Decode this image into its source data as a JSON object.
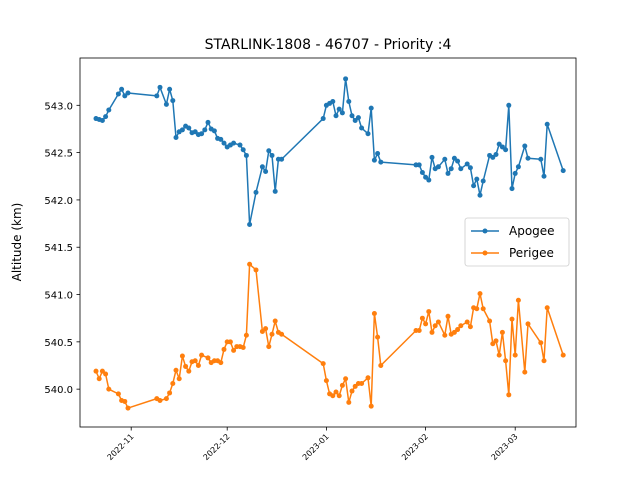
{
  "chart_data": {
    "type": "line",
    "title": "STARLINK-1808 - 46707 - Priority :4",
    "xlabel": "",
    "ylabel": "Altitude (km)",
    "xlim": [
      "2022-10-16",
      "2023-03-20"
    ],
    "ylim": [
      539.6,
      543.5
    ],
    "yticks": [
      540.0,
      540.5,
      541.0,
      541.5,
      542.0,
      542.5,
      543.0
    ],
    "yticklabels": [
      "540.0",
      "540.5",
      "541.0",
      "541.5",
      "542.0",
      "542.5",
      "543.0"
    ],
    "xticks": [
      "2022-11-01",
      "2022-12-01",
      "2023-01-01",
      "2023-02-01",
      "2023-03-01"
    ],
    "xticklabels": [
      "2022-11",
      "2022-12",
      "2023-01",
      "2023-02",
      "2023-03"
    ],
    "legend_position": "center-right",
    "grid": false,
    "series": [
      {
        "name": "Apogee",
        "color": "#1f77b4",
        "points": [
          [
            "2022-10-21",
            542.86
          ],
          [
            "2022-10-22",
            542.85
          ],
          [
            "2022-10-23",
            542.84
          ],
          [
            "2022-10-24",
            542.88
          ],
          [
            "2022-10-25",
            542.95
          ],
          [
            "2022-10-28",
            543.12
          ],
          [
            "2022-10-29",
            543.17
          ],
          [
            "2022-10-30",
            543.1
          ],
          [
            "2022-10-31",
            543.13
          ],
          [
            "2022-11-09",
            543.1
          ],
          [
            "2022-11-10",
            543.19
          ],
          [
            "2022-11-12",
            543.01
          ],
          [
            "2022-11-13",
            543.17
          ],
          [
            "2022-11-14",
            543.05
          ],
          [
            "2022-11-15",
            542.66
          ],
          [
            "2022-11-16",
            542.72
          ],
          [
            "2022-11-17",
            542.74
          ],
          [
            "2022-11-18",
            542.78
          ],
          [
            "2022-11-19",
            542.76
          ],
          [
            "2022-11-20",
            542.71
          ],
          [
            "2022-11-21",
            542.72
          ],
          [
            "2022-11-22",
            542.69
          ],
          [
            "2022-11-23",
            542.7
          ],
          [
            "2022-11-24",
            542.74
          ],
          [
            "2022-11-25",
            542.82
          ],
          [
            "2022-11-26",
            542.75
          ],
          [
            "2022-11-27",
            542.73
          ],
          [
            "2022-11-28",
            542.65
          ],
          [
            "2022-11-29",
            542.64
          ],
          [
            "2022-11-30",
            542.6
          ],
          [
            "2022-12-01",
            542.56
          ],
          [
            "2022-12-02",
            542.58
          ],
          [
            "2022-12-03",
            542.6
          ],
          [
            "2022-12-05",
            542.58
          ],
          [
            "2022-12-06",
            542.53
          ],
          [
            "2022-12-07",
            542.47
          ],
          [
            "2022-12-08",
            541.74
          ],
          [
            "2022-12-10",
            542.08
          ],
          [
            "2022-12-12",
            542.35
          ],
          [
            "2022-12-13",
            542.3
          ],
          [
            "2022-12-14",
            542.52
          ],
          [
            "2022-12-15",
            542.47
          ],
          [
            "2022-12-16",
            542.09
          ],
          [
            "2022-12-17",
            542.43
          ],
          [
            "2022-12-18",
            542.43
          ],
          [
            "2022-12-31",
            542.86
          ],
          [
            "2023-01-01",
            543.0
          ],
          [
            "2023-01-02",
            543.02
          ],
          [
            "2023-01-03",
            543.04
          ],
          [
            "2023-01-04",
            542.89
          ],
          [
            "2023-01-05",
            542.96
          ],
          [
            "2023-01-06",
            542.92
          ],
          [
            "2023-01-07",
            543.28
          ],
          [
            "2023-01-08",
            543.04
          ],
          [
            "2023-01-09",
            542.89
          ],
          [
            "2023-01-10",
            542.84
          ],
          [
            "2023-01-11",
            542.87
          ],
          [
            "2023-01-12",
            542.76
          ],
          [
            "2023-01-14",
            542.7
          ],
          [
            "2023-01-15",
            542.97
          ],
          [
            "2023-01-16",
            542.42
          ],
          [
            "2023-01-17",
            542.49
          ],
          [
            "2023-01-18",
            542.4
          ],
          [
            "2023-01-29",
            542.37
          ],
          [
            "2023-01-30",
            542.37
          ],
          [
            "2023-01-31",
            542.29
          ],
          [
            "2023-02-01",
            542.24
          ],
          [
            "2023-02-02",
            542.21
          ],
          [
            "2023-02-03",
            542.45
          ],
          [
            "2023-02-04",
            542.33
          ],
          [
            "2023-02-05",
            542.35
          ],
          [
            "2023-02-07",
            542.43
          ],
          [
            "2023-02-08",
            542.28
          ],
          [
            "2023-02-09",
            542.33
          ],
          [
            "2023-02-10",
            542.44
          ],
          [
            "2023-02-11",
            542.41
          ],
          [
            "2023-02-12",
            542.33
          ],
          [
            "2023-02-14",
            542.38
          ],
          [
            "2023-02-15",
            542.34
          ],
          [
            "2023-02-16",
            542.15
          ],
          [
            "2023-02-17",
            542.22
          ],
          [
            "2023-02-18",
            542.05
          ],
          [
            "2023-02-19",
            542.2
          ],
          [
            "2023-02-21",
            542.47
          ],
          [
            "2023-02-22",
            542.45
          ],
          [
            "2023-02-23",
            542.48
          ],
          [
            "2023-02-24",
            542.59
          ],
          [
            "2023-02-25",
            542.56
          ],
          [
            "2023-02-26",
            542.53
          ],
          [
            "2023-02-27",
            543.0
          ],
          [
            "2023-02-28",
            542.12
          ],
          [
            "2023-03-01",
            542.28
          ],
          [
            "2023-03-02",
            542.35
          ],
          [
            "2023-03-04",
            542.57
          ],
          [
            "2023-03-05",
            542.44
          ],
          [
            "2023-03-09",
            542.43
          ],
          [
            "2023-03-10",
            542.25
          ],
          [
            "2023-03-11",
            542.8
          ],
          [
            "2023-03-16",
            542.31
          ]
        ]
      },
      {
        "name": "Perigee",
        "color": "#ff7f0e",
        "points": [
          [
            "2022-10-21",
            540.19
          ],
          [
            "2022-10-22",
            540.11
          ],
          [
            "2022-10-23",
            540.19
          ],
          [
            "2022-10-24",
            540.16
          ],
          [
            "2022-10-25",
            540.0
          ],
          [
            "2022-10-28",
            539.95
          ],
          [
            "2022-10-29",
            539.88
          ],
          [
            "2022-10-30",
            539.87
          ],
          [
            "2022-10-31",
            539.8
          ],
          [
            "2022-11-09",
            539.9
          ],
          [
            "2022-11-10",
            539.88
          ],
          [
            "2022-11-12",
            539.9
          ],
          [
            "2022-11-13",
            539.96
          ],
          [
            "2022-11-14",
            540.06
          ],
          [
            "2022-11-15",
            540.2
          ],
          [
            "2022-11-16",
            540.11
          ],
          [
            "2022-11-17",
            540.35
          ],
          [
            "2022-11-18",
            540.24
          ],
          [
            "2022-11-19",
            540.19
          ],
          [
            "2022-11-20",
            540.29
          ],
          [
            "2022-11-21",
            540.3
          ],
          [
            "2022-11-22",
            540.25
          ],
          [
            "2022-11-23",
            540.36
          ],
          [
            "2022-11-25",
            540.33
          ],
          [
            "2022-11-26",
            540.28
          ],
          [
            "2022-11-27",
            540.3
          ],
          [
            "2022-11-28",
            540.3
          ],
          [
            "2022-11-29",
            540.28
          ],
          [
            "2022-11-30",
            540.42
          ],
          [
            "2022-12-01",
            540.5
          ],
          [
            "2022-12-02",
            540.5
          ],
          [
            "2022-12-03",
            540.41
          ],
          [
            "2022-12-04",
            540.45
          ],
          [
            "2022-12-05",
            540.45
          ],
          [
            "2022-12-06",
            540.44
          ],
          [
            "2022-12-07",
            540.57
          ],
          [
            "2022-12-08",
            541.32
          ],
          [
            "2022-12-10",
            541.26
          ],
          [
            "2022-12-12",
            540.61
          ],
          [
            "2022-12-13",
            540.64
          ],
          [
            "2022-12-14",
            540.45
          ],
          [
            "2022-12-15",
            540.58
          ],
          [
            "2022-12-16",
            540.72
          ],
          [
            "2022-12-17",
            540.6
          ],
          [
            "2022-12-18",
            540.58
          ],
          [
            "2022-12-31",
            540.27
          ],
          [
            "2023-01-01",
            540.09
          ],
          [
            "2023-01-02",
            539.95
          ],
          [
            "2023-01-03",
            539.93
          ],
          [
            "2023-01-04",
            539.97
          ],
          [
            "2023-01-05",
            539.93
          ],
          [
            "2023-01-06",
            540.04
          ],
          [
            "2023-01-07",
            540.11
          ],
          [
            "2023-01-08",
            539.86
          ],
          [
            "2023-01-09",
            539.98
          ],
          [
            "2023-01-10",
            540.03
          ],
          [
            "2023-01-11",
            540.06
          ],
          [
            "2023-01-12",
            540.06
          ],
          [
            "2023-01-14",
            540.12
          ],
          [
            "2023-01-15",
            539.82
          ],
          [
            "2023-01-16",
            540.8
          ],
          [
            "2023-01-17",
            540.55
          ],
          [
            "2023-01-18",
            540.25
          ],
          [
            "2023-01-29",
            540.62
          ],
          [
            "2023-01-30",
            540.62
          ],
          [
            "2023-01-31",
            540.75
          ],
          [
            "2023-02-01",
            540.69
          ],
          [
            "2023-02-02",
            540.82
          ],
          [
            "2023-02-03",
            540.6
          ],
          [
            "2023-02-04",
            540.67
          ],
          [
            "2023-02-05",
            540.71
          ],
          [
            "2023-02-07",
            540.57
          ],
          [
            "2023-02-08",
            540.77
          ],
          [
            "2023-02-09",
            540.58
          ],
          [
            "2023-02-10",
            540.6
          ],
          [
            "2023-02-11",
            540.63
          ],
          [
            "2023-02-12",
            540.67
          ],
          [
            "2023-02-14",
            540.71
          ],
          [
            "2023-02-15",
            540.66
          ],
          [
            "2023-02-16",
            540.86
          ],
          [
            "2023-02-17",
            540.85
          ],
          [
            "2023-02-18",
            541.01
          ],
          [
            "2023-02-19",
            540.85
          ],
          [
            "2023-02-21",
            540.72
          ],
          [
            "2023-02-22",
            540.48
          ],
          [
            "2023-02-23",
            540.51
          ],
          [
            "2023-02-24",
            540.36
          ],
          [
            "2023-02-25",
            540.6
          ],
          [
            "2023-02-26",
            540.3
          ],
          [
            "2023-02-27",
            539.94
          ],
          [
            "2023-02-28",
            540.74
          ],
          [
            "2023-03-01",
            540.36
          ],
          [
            "2023-03-02",
            540.94
          ],
          [
            "2023-03-04",
            540.18
          ],
          [
            "2023-03-05",
            540.69
          ],
          [
            "2023-03-09",
            540.49
          ],
          [
            "2023-03-10",
            540.3
          ],
          [
            "2023-03-11",
            540.86
          ],
          [
            "2023-03-16",
            540.36
          ]
        ]
      }
    ]
  }
}
